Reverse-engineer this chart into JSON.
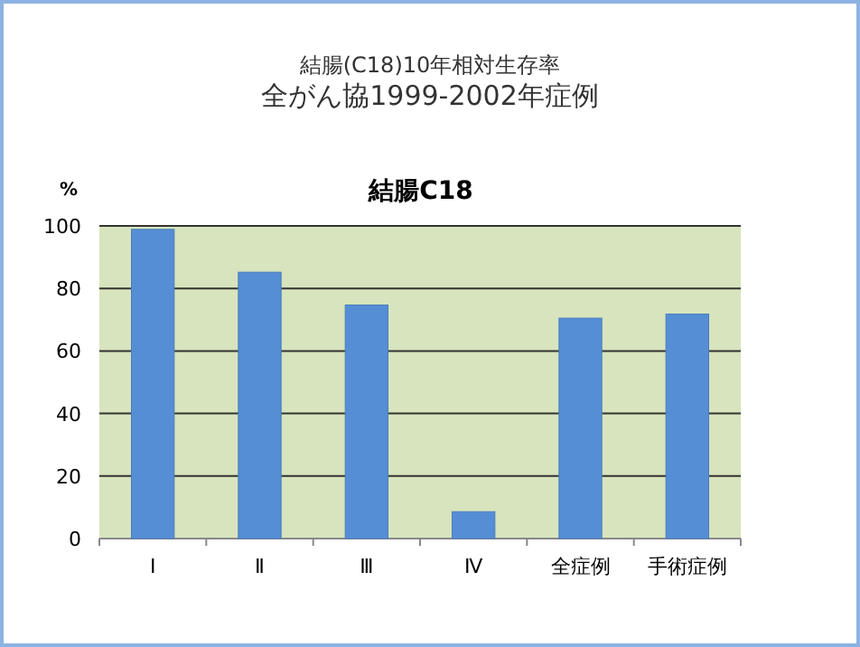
{
  "chart_data": {
    "type": "bar",
    "title": "結腸(C18)10年相対生存率",
    "subtitle": "全がん協1999-2002年症例",
    "annotations": [
      "結腸C18"
    ],
    "ylabel": "%",
    "categories": [
      "Ⅰ",
      "Ⅱ",
      "Ⅲ",
      "Ⅳ",
      "全症例",
      "手術症例"
    ],
    "values": [
      98.9,
      85.2,
      74.7,
      8.6,
      70.5,
      71.8
    ],
    "color": "#558ed5",
    "ylim": [
      0,
      100
    ],
    "yticks": [
      0,
      20,
      40,
      60,
      80,
      100
    ],
    "grid": "y"
  }
}
